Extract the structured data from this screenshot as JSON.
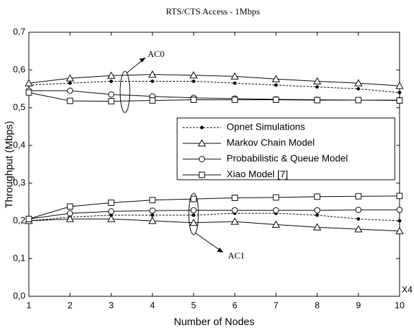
{
  "chart_data": {
    "type": "line",
    "title": "RTS/CTS Access - 1Mbps",
    "xlabel": "Number of Nodes",
    "ylabel": "Throughput (Mbps)",
    "annotations": [
      "AC0",
      "AC1",
      "X4"
    ],
    "xlim": [
      1,
      10
    ],
    "xticks": [
      1,
      2,
      3,
      4,
      5,
      6,
      7,
      8,
      9,
      10
    ],
    "ylim": [
      0,
      0.7
    ],
    "yticks": [
      {
        "value": 0,
        "label": "0,0"
      },
      {
        "value": 0.1,
        "label": "0,1"
      },
      {
        "value": 0.2,
        "label": "0,2"
      },
      {
        "value": 0.3,
        "label": "0,3"
      },
      {
        "value": 0.4,
        "label": "0,4"
      },
      {
        "value": 0.5,
        "label": "0,5"
      },
      {
        "value": 0.6,
        "label": "0,6"
      },
      {
        "value": 0.7,
        "label": "0,7"
      }
    ],
    "x": [
      1,
      2,
      3,
      4,
      5,
      6,
      7,
      8,
      9,
      10
    ],
    "legend": "right",
    "series": [
      {
        "name": "Opnet Simulations",
        "color": "#000000",
        "marker": "dot",
        "linestyle": "dashed",
        "values": [
          0.56,
          0.565,
          0.57,
          0.57,
          0.57,
          0.565,
          0.56,
          0.555,
          0.55,
          0.54
        ]
      },
      {
        "name": "Markov Chain Model",
        "color": "#000000",
        "marker": "triangle",
        "linestyle": "solid",
        "values": [
          0.565,
          0.578,
          0.585,
          0.588,
          0.586,
          0.583,
          0.576,
          0.57,
          0.565,
          0.558
        ]
      },
      {
        "name": "Probabilistic & Queue Model",
        "color": "#000000",
        "marker": "circle",
        "linestyle": "solid",
        "values": [
          0.545,
          0.545,
          0.535,
          0.53,
          0.526,
          0.524,
          0.522,
          0.521,
          0.52,
          0.52
        ]
      },
      {
        "name": "Xiao Model [7]",
        "color": "#000000",
        "marker": "square",
        "linestyle": "solid",
        "values": [
          0.54,
          0.518,
          0.517,
          0.519,
          0.521,
          0.521,
          0.521,
          0.52,
          0.52,
          0.519
        ]
      },
      {
        "name": "Opnet Simulations",
        "color": "#000000",
        "marker": "dot",
        "linestyle": "dashed",
        "values": [
          0.2,
          0.21,
          0.215,
          0.215,
          0.215,
          0.22,
          0.22,
          0.215,
          0.205,
          0.2
        ]
      },
      {
        "name": "Markov Chain Model",
        "color": "#000000",
        "marker": "triangle",
        "linestyle": "solid",
        "values": [
          0.2,
          0.205,
          0.205,
          0.2,
          0.195,
          0.198,
          0.19,
          0.183,
          0.178,
          0.173
        ]
      },
      {
        "name": "Probabilistic & Queue Model",
        "color": "#000000",
        "marker": "circle",
        "linestyle": "solid",
        "values": [
          0.205,
          0.22,
          0.225,
          0.227,
          0.228,
          0.228,
          0.228,
          0.228,
          0.229,
          0.229
        ]
      },
      {
        "name": "Xiao Model [7]",
        "color": "#000000",
        "marker": "square",
        "linestyle": "solid",
        "values": [
          0.205,
          0.238,
          0.248,
          0.255,
          0.258,
          0.261,
          0.262,
          0.264,
          0.265,
          0.266
        ]
      }
    ]
  }
}
